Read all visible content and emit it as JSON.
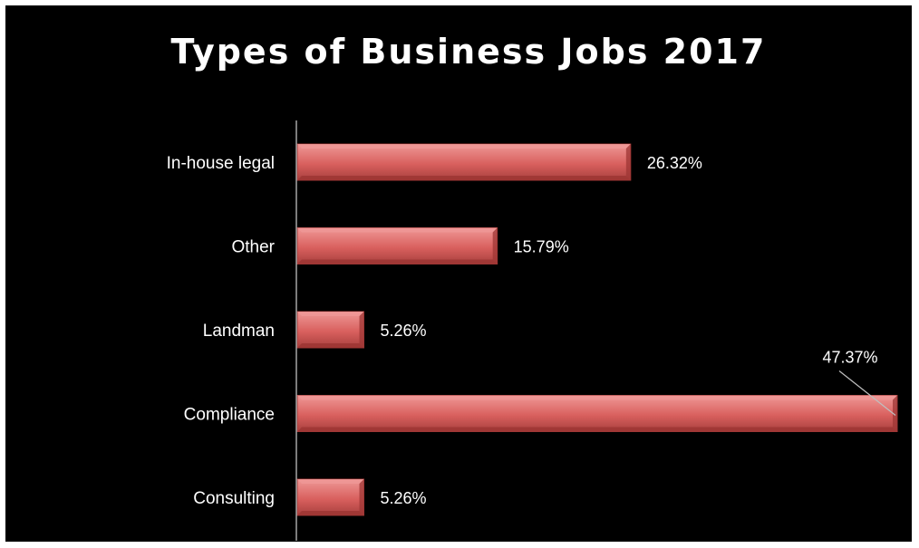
{
  "chart_data": {
    "type": "bar",
    "orientation": "horizontal",
    "title": "Types of Business Jobs 2017",
    "categories": [
      "In-house legal",
      "Other",
      "Landman",
      "Compliance",
      "Consulting"
    ],
    "values": [
      26.32,
      15.79,
      5.26,
      47.37,
      5.26
    ],
    "data_labels": [
      "26.32%",
      "15.79%",
      "5.26%",
      "47.37%",
      "5.26%"
    ],
    "value_unit": "%",
    "xlim": [
      0,
      47.37
    ],
    "xlabel": "",
    "ylabel": "",
    "grid": false,
    "legend": "none",
    "colors": {
      "background": "#000000",
      "bar_fill": "#d9605e",
      "bar_light": "#ef9896",
      "bar_dark": "#9e3634",
      "text": "#ffffff",
      "axis": "#a6a6a6",
      "leader_line": "#bfbfbf"
    }
  }
}
